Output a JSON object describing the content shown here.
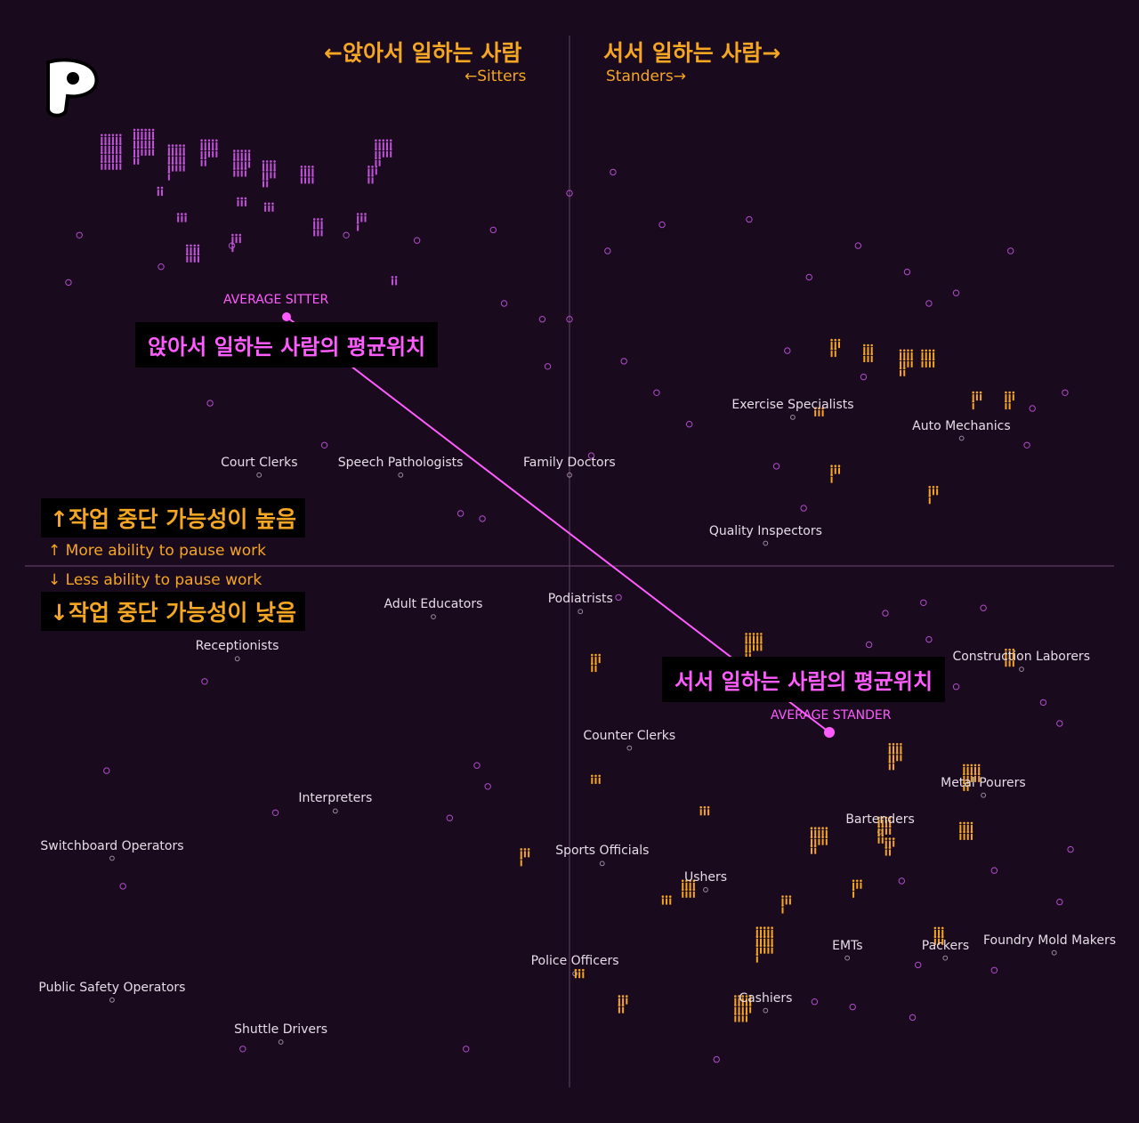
{
  "logo": {
    "icon": "p-logo-icon",
    "letter": "P"
  },
  "header": {
    "left_title": "←앉아서 일하는 사람",
    "left_sub": "←Sitters",
    "right_title": "서서 일하는 사람→",
    "right_sub": "Standers→"
  },
  "side": {
    "up_title": "↑작업 중단 가능성이 높음",
    "up_sub": "↑ More ability to pause work",
    "down_sub": "↓ Less ability to pause work",
    "down_title": "↓작업 중단 가능성이 낮음"
  },
  "callouts": {
    "sitter_label": "AVERAGE SITTER",
    "sitter_text": "앉아서 일하는 사람의 평균위치",
    "stander_label": "AVERAGE STANDER",
    "stander_text": "서서 일하는 사람의 평균위치"
  },
  "colors": {
    "background": "#1a0a1d",
    "accent_orange": "#f5a623",
    "accent_pink": "#ff5cff",
    "marker_purple": "#b04ccc",
    "axis": "#5a3a60"
  },
  "chart_data": {
    "type": "scatter",
    "title": "",
    "xlabel": "",
    "ylabel": "",
    "xlim": [
      -1,
      1
    ],
    "ylim": [
      -1,
      1
    ],
    "grid": false,
    "legend": "none",
    "x_axis_meaning": [
      "Sitters",
      "Standers"
    ],
    "y_axis_meaning": [
      "Less ability to pause work",
      "More ability to pause work"
    ],
    "averages": [
      {
        "name": "AVERAGE SITTER",
        "x": -0.53,
        "y": 0.54
      },
      {
        "name": "AVERAGE STANDER",
        "x": 0.48,
        "y": -0.32
      }
    ],
    "labeled_occupations": [
      {
        "name": "Exercise Specialists",
        "x": 0.41,
        "y": 0.29
      },
      {
        "name": "Auto Mechanics",
        "x": 0.72,
        "y": 0.25
      },
      {
        "name": "Court Clerks",
        "x": -0.57,
        "y": 0.18
      },
      {
        "name": "Speech Pathologists",
        "x": -0.31,
        "y": 0.18
      },
      {
        "name": "Family Doctors",
        "x": 0.0,
        "y": 0.18
      },
      {
        "name": "Quality Inspectors",
        "x": 0.36,
        "y": 0.05
      },
      {
        "name": "Adult Educators",
        "x": -0.25,
        "y": -0.09
      },
      {
        "name": "Podiatrists",
        "x": 0.02,
        "y": -0.08
      },
      {
        "name": "Construction Laborers",
        "x": 0.83,
        "y": -0.19
      },
      {
        "name": "Receptionists",
        "x": -0.61,
        "y": -0.17
      },
      {
        "name": "Counter Clerks",
        "x": 0.11,
        "y": -0.34
      },
      {
        "name": "Metal Pourers",
        "x": 0.76,
        "y": -0.43
      },
      {
        "name": "Bartenders",
        "x": 0.57,
        "y": -0.5
      },
      {
        "name": "Interpreters",
        "x": -0.43,
        "y": -0.46
      },
      {
        "name": "Switchboard Operators",
        "x": -0.84,
        "y": -0.55
      },
      {
        "name": "Sports Officials",
        "x": 0.06,
        "y": -0.56
      },
      {
        "name": "Ushers",
        "x": 0.25,
        "y": -0.61
      },
      {
        "name": "Foundry Mold Makers",
        "x": 0.89,
        "y": -0.73
      },
      {
        "name": "Packers",
        "x": 0.69,
        "y": -0.74
      },
      {
        "name": "EMTs",
        "x": 0.51,
        "y": -0.74
      },
      {
        "name": "Police Officers",
        "x": 0.01,
        "y": -0.77
      },
      {
        "name": "Cashiers",
        "x": 0.36,
        "y": -0.84
      },
      {
        "name": "Public Safety Operators",
        "x": -0.84,
        "y": -0.82
      },
      {
        "name": "Shuttle Drivers",
        "x": -0.53,
        "y": -0.9
      }
    ],
    "worker_clusters": {
      "sitters": [
        [
          -0.84,
          0.78,
          24
        ],
        [
          -0.78,
          0.79,
          20
        ],
        [
          -0.72,
          0.76,
          16
        ],
        [
          -0.66,
          0.78,
          12
        ],
        [
          -0.6,
          0.76,
          14
        ],
        [
          -0.55,
          0.74,
          10
        ],
        [
          -0.48,
          0.74,
          8
        ],
        [
          -0.34,
          0.78,
          12
        ],
        [
          -0.69,
          0.59,
          8
        ],
        [
          -0.36,
          0.74,
          5
        ],
        [
          -0.46,
          0.64,
          6
        ],
        [
          -0.38,
          0.65,
          4
        ],
        [
          -0.61,
          0.61,
          4
        ],
        [
          -0.32,
          0.54,
          2
        ],
        [
          -0.71,
          0.66,
          3
        ],
        [
          -0.75,
          0.71,
          2
        ],
        [
          -0.55,
          0.68,
          3
        ],
        [
          -0.6,
          0.69,
          3
        ]
      ],
      "standers": [
        [
          0.62,
          0.38,
          10
        ],
        [
          0.55,
          0.4,
          6
        ],
        [
          0.49,
          0.41,
          5
        ],
        [
          0.66,
          0.39,
          8
        ],
        [
          0.75,
          0.31,
          4
        ],
        [
          0.81,
          0.31,
          5
        ],
        [
          0.46,
          0.29,
          3
        ],
        [
          0.49,
          0.17,
          4
        ],
        [
          0.67,
          0.13,
          4
        ],
        [
          0.34,
          -0.16,
          12
        ],
        [
          0.6,
          -0.37,
          10
        ],
        [
          0.74,
          -0.41,
          12
        ],
        [
          0.73,
          -0.51,
          8
        ],
        [
          0.58,
          -0.51,
          10
        ],
        [
          0.46,
          -0.53,
          12
        ],
        [
          0.59,
          -0.54,
          5
        ],
        [
          0.36,
          -0.73,
          16
        ],
        [
          0.32,
          -0.85,
          14
        ],
        [
          0.68,
          -0.71,
          6
        ],
        [
          0.22,
          -0.62,
          8
        ],
        [
          0.4,
          -0.65,
          4
        ],
        [
          0.81,
          -0.18,
          6
        ],
        [
          0.05,
          -0.19,
          5
        ],
        [
          -0.08,
          -0.56,
          4
        ],
        [
          0.1,
          -0.84,
          5
        ],
        [
          0.02,
          -0.78,
          3
        ],
        [
          0.25,
          -0.47,
          3
        ],
        [
          0.05,
          -0.41,
          3
        ],
        [
          0.53,
          -0.62,
          4
        ],
        [
          0.18,
          -0.64,
          3
        ]
      ],
      "scattered": [
        [
          -0.9,
          0.63
        ],
        [
          -0.75,
          0.57
        ],
        [
          -0.62,
          0.61
        ],
        [
          -0.28,
          0.62
        ],
        [
          -0.14,
          0.64
        ],
        [
          -0.12,
          0.5
        ],
        [
          -0.05,
          0.47
        ],
        [
          0.0,
          0.71
        ],
        [
          0.07,
          0.6
        ],
        [
          0.08,
          0.75
        ],
        [
          0.17,
          0.65
        ],
        [
          0.33,
          0.66
        ],
        [
          0.44,
          0.55
        ],
        [
          0.53,
          0.61
        ],
        [
          0.62,
          0.56
        ],
        [
          0.66,
          0.5
        ],
        [
          0.81,
          0.6
        ],
        [
          0.0,
          0.47
        ],
        [
          -0.04,
          0.38
        ],
        [
          0.1,
          0.39
        ],
        [
          0.16,
          0.33
        ],
        [
          0.22,
          0.27
        ],
        [
          0.4,
          0.41
        ],
        [
          0.54,
          0.36
        ],
        [
          0.85,
          0.3
        ],
        [
          0.91,
          0.33
        ],
        [
          0.84,
          0.23
        ],
        [
          0.38,
          0.19
        ],
        [
          0.43,
          0.11
        ],
        [
          -0.45,
          0.23
        ],
        [
          -0.2,
          0.1
        ],
        [
          -0.16,
          0.09
        ],
        [
          0.04,
          0.21
        ],
        [
          0.09,
          -0.06
        ],
        [
          -0.66,
          0.31
        ],
        [
          -0.92,
          0.54
        ],
        [
          -0.41,
          0.63
        ],
        [
          0.71,
          0.52
        ],
        [
          0.65,
          -0.07
        ],
        [
          0.58,
          -0.09
        ],
        [
          0.76,
          -0.08
        ],
        [
          0.66,
          -0.14
        ],
        [
          0.55,
          -0.15
        ],
        [
          0.71,
          -0.23
        ],
        [
          0.87,
          -0.26
        ],
        [
          0.9,
          -0.3
        ],
        [
          -0.17,
          -0.38
        ],
        [
          -0.15,
          -0.42
        ],
        [
          -0.22,
          -0.48
        ],
        [
          -0.54,
          -0.47
        ],
        [
          -0.67,
          -0.22
        ],
        [
          -0.82,
          -0.61
        ],
        [
          -0.85,
          -0.39
        ],
        [
          -0.6,
          -0.92
        ],
        [
          -0.19,
          -0.92
        ],
        [
          0.27,
          -0.94
        ],
        [
          0.52,
          -0.84
        ],
        [
          0.78,
          -0.77
        ],
        [
          0.9,
          -0.64
        ],
        [
          0.92,
          -0.54
        ],
        [
          0.61,
          -0.6
        ],
        [
          0.64,
          -0.76
        ],
        [
          0.78,
          -0.58
        ],
        [
          0.45,
          -0.83
        ],
        [
          0.63,
          -0.86
        ]
      ]
    }
  }
}
